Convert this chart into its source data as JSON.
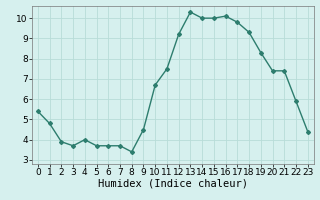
{
  "x": [
    0,
    1,
    2,
    3,
    4,
    5,
    6,
    7,
    8,
    9,
    10,
    11,
    12,
    13,
    14,
    15,
    16,
    17,
    18,
    19,
    20,
    21,
    22,
    23
  ],
  "y": [
    5.4,
    4.8,
    3.9,
    3.7,
    4.0,
    3.7,
    3.7,
    3.7,
    3.4,
    4.5,
    6.7,
    7.5,
    9.2,
    10.3,
    10.0,
    10.0,
    10.1,
    9.8,
    9.3,
    8.3,
    7.4,
    7.4,
    5.9,
    4.4
  ],
  "line_color": "#2d7d6e",
  "marker": "D",
  "marker_size": 2,
  "bg_color": "#d6f0ee",
  "grid_color": "#b8dcd8",
  "xlabel": "Humidex (Indice chaleur)",
  "xlim": [
    -0.5,
    23.5
  ],
  "ylim": [
    2.8,
    10.6
  ],
  "yticks": [
    3,
    4,
    5,
    6,
    7,
    8,
    9,
    10
  ],
  "xticks": [
    0,
    1,
    2,
    3,
    4,
    5,
    6,
    7,
    8,
    9,
    10,
    11,
    12,
    13,
    14,
    15,
    16,
    17,
    18,
    19,
    20,
    21,
    22,
    23
  ],
  "tick_label_fontsize": 6.5,
  "xlabel_fontsize": 7.5
}
